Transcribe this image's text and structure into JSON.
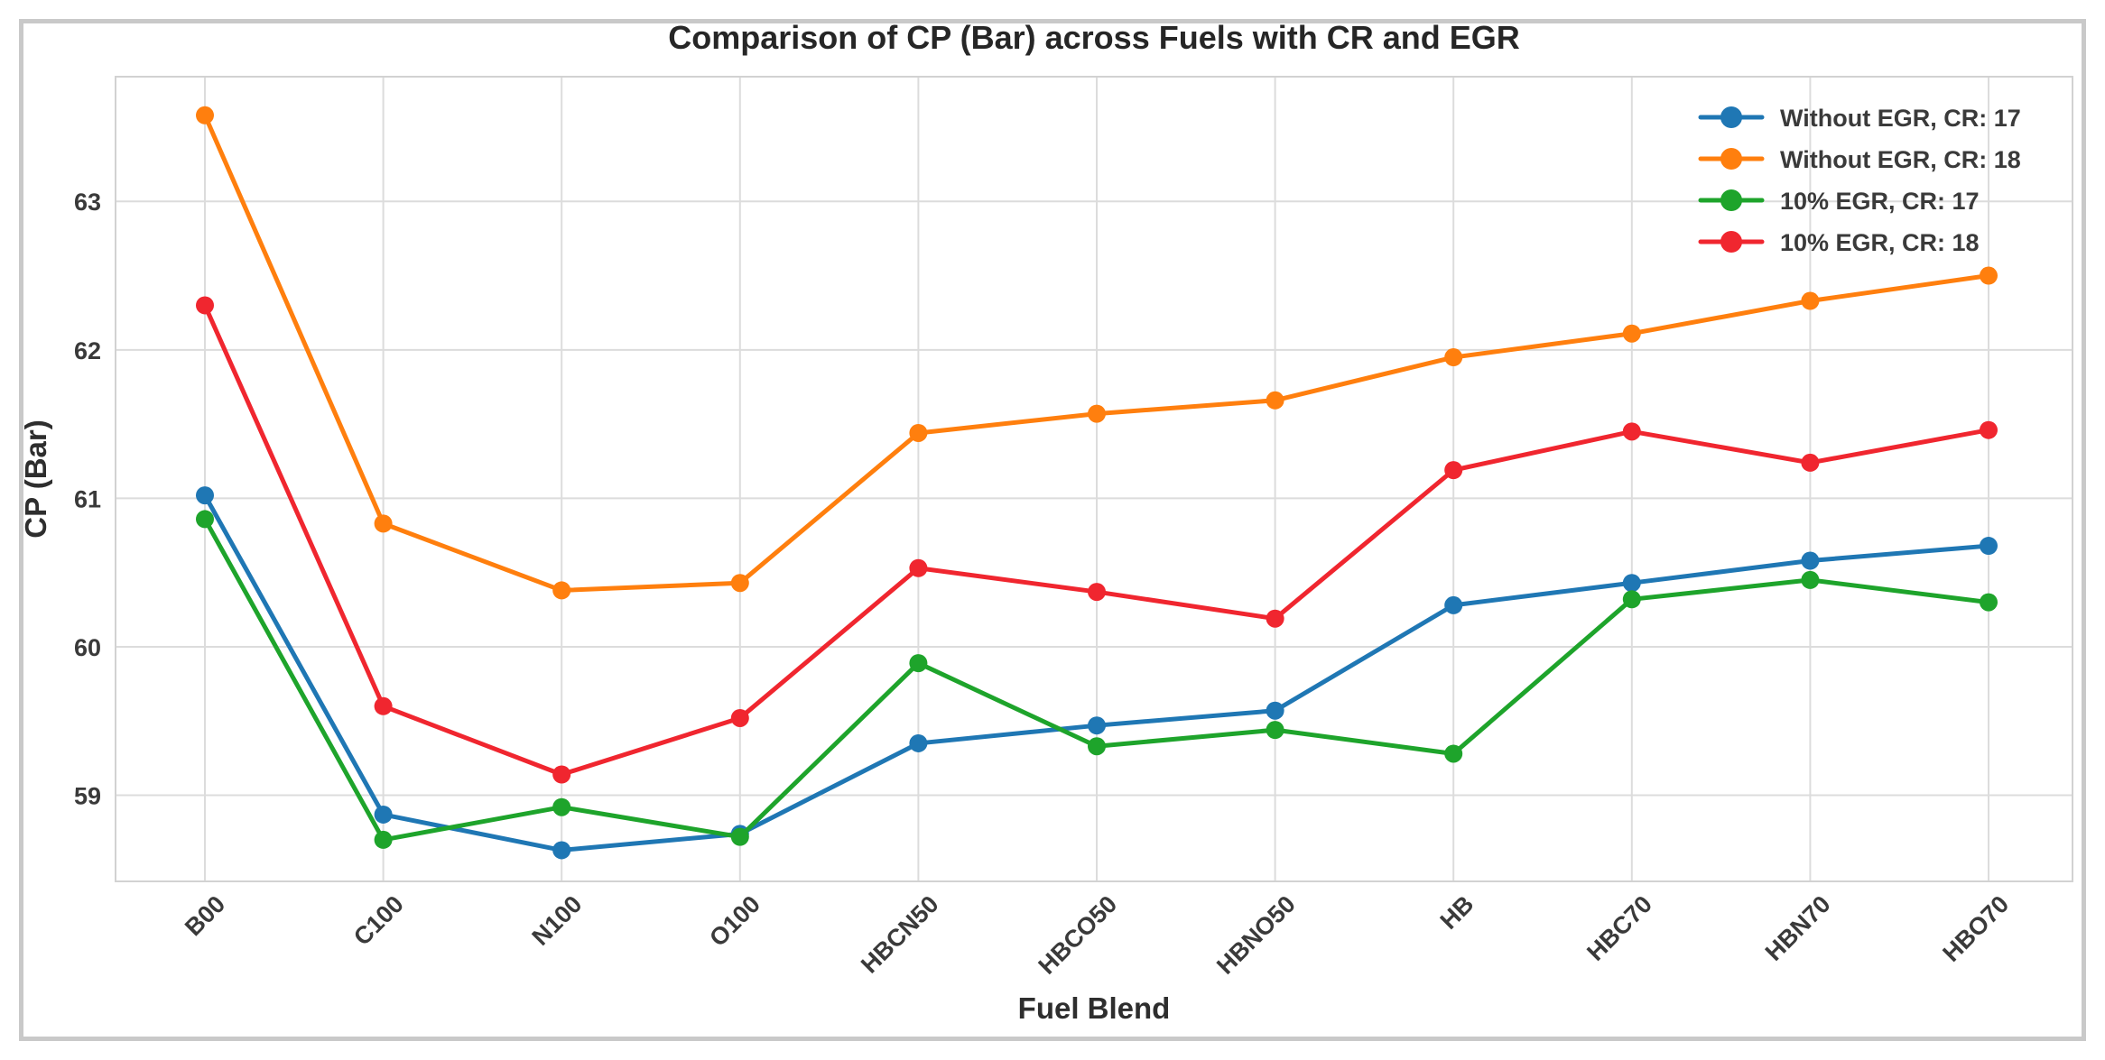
{
  "chart_data": {
    "type": "line",
    "title": "Comparison of CP (Bar) across Fuels with CR and EGR",
    "xlabel": "Fuel Blend",
    "ylabel": "CP (Bar)",
    "categories": [
      "B00",
      "C100",
      "N100",
      "O100",
      "HBCN50",
      "HBCO50",
      "HBNO50",
      "HB",
      "HBC70",
      "HBN70",
      "HBO70"
    ],
    "series": [
      {
        "name": "Without EGR, CR: 17",
        "color": "#1f77b4",
        "values": [
          61.02,
          58.87,
          58.63,
          58.74,
          59.35,
          59.47,
          59.57,
          60.28,
          60.43,
          60.58,
          60.68
        ]
      },
      {
        "name": "Without EGR, CR: 18",
        "color": "#ff7f0e",
        "values": [
          63.58,
          60.83,
          60.38,
          60.43,
          61.44,
          61.57,
          61.66,
          61.95,
          62.11,
          62.33,
          62.5
        ]
      },
      {
        "name": "10% EGR, CR: 17",
        "color": "#1ea42b",
        "values": [
          60.86,
          58.7,
          58.92,
          58.72,
          59.89,
          59.33,
          59.44,
          59.28,
          60.32,
          60.45,
          60.3
        ]
      },
      {
        "name": "10% EGR, CR: 18",
        "color": "#f0262f",
        "values": [
          62.3,
          59.6,
          59.14,
          59.52,
          60.53,
          60.37,
          60.19,
          61.19,
          61.45,
          61.24,
          61.46
        ]
      }
    ],
    "yticks": [
      59,
      60,
      61,
      62,
      63
    ],
    "ylim": [
      58.42,
      63.84
    ],
    "grid": true,
    "legend_position": "upper right"
  },
  "style_colors": {
    "grid": "#dcdcdc",
    "frame": "#d2d2d2",
    "tick_text": "#3a3a3a",
    "legend_text": "#3a3a3a",
    "border": "#c9c9c9",
    "background": "#ffffff"
  }
}
